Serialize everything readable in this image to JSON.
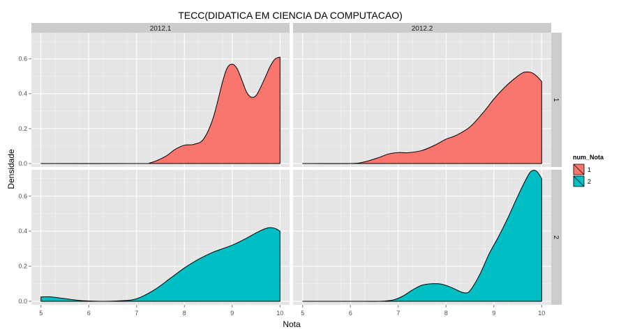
{
  "chart_data": {
    "type": "area",
    "title": "TECC(DIDATICA EM CIENCIA DA COMPUTACAO)",
    "xlabel": "Nota",
    "ylabel": "Densidade",
    "xlim": [
      4.8,
      10.2
    ],
    "ylim": [
      -0.02,
      0.75
    ],
    "x_ticks": [
      5,
      6,
      7,
      8,
      9,
      10
    ],
    "y_ticks": [
      0.0,
      0.2,
      0.4,
      0.6
    ],
    "y_tick_labels": [
      "0.0",
      "0.2",
      "0.4",
      "0.6"
    ],
    "grid": true,
    "facet_columns": [
      "2012.1",
      "2012.2"
    ],
    "facet_rows": [
      "1",
      "2"
    ],
    "legend": {
      "title": "num_Nota",
      "position": "right",
      "entries": [
        {
          "label": "1",
          "color": "#F8766D"
        },
        {
          "label": "2",
          "color": "#00BFC4"
        }
      ]
    },
    "panels": [
      {
        "column": "2012.1",
        "row": "1",
        "color": "#F8766D",
        "x": [
          5.0,
          7.0,
          7.3,
          7.6,
          7.8,
          8.0,
          8.2,
          8.4,
          8.6,
          8.8,
          8.9,
          9.0,
          9.1,
          9.2,
          9.3,
          9.4,
          9.5,
          9.6,
          9.7,
          9.8,
          9.9,
          10.0
        ],
        "y": [
          0.0,
          0.0,
          0.005,
          0.04,
          0.08,
          0.105,
          0.11,
          0.14,
          0.26,
          0.47,
          0.55,
          0.57,
          0.545,
          0.48,
          0.41,
          0.38,
          0.39,
          0.44,
          0.5,
          0.56,
          0.6,
          0.61
        ]
      },
      {
        "column": "2012.2",
        "row": "1",
        "color": "#F8766D",
        "x": [
          5.0,
          6.0,
          6.3,
          6.6,
          6.8,
          7.0,
          7.2,
          7.5,
          7.8,
          8.0,
          8.2,
          8.5,
          8.8,
          9.0,
          9.2,
          9.4,
          9.6,
          9.7,
          9.8,
          9.9,
          10.0
        ],
        "y": [
          0.0,
          0.0,
          0.01,
          0.035,
          0.055,
          0.063,
          0.062,
          0.075,
          0.11,
          0.14,
          0.16,
          0.21,
          0.3,
          0.37,
          0.43,
          0.48,
          0.52,
          0.525,
          0.52,
          0.5,
          0.47
        ]
      },
      {
        "column": "2012.1",
        "row": "2",
        "color": "#00BFC4",
        "x": [
          5.0,
          5.2,
          5.5,
          5.8,
          6.0,
          6.3,
          6.6,
          6.9,
          7.1,
          7.4,
          7.7,
          8.0,
          8.3,
          8.6,
          9.0,
          9.3,
          9.5,
          9.7,
          9.8,
          9.9,
          10.0
        ],
        "y": [
          0.025,
          0.025,
          0.015,
          0.005,
          0.002,
          0.0,
          0.002,
          0.008,
          0.025,
          0.07,
          0.13,
          0.19,
          0.24,
          0.28,
          0.32,
          0.36,
          0.39,
          0.415,
          0.42,
          0.415,
          0.4
        ]
      },
      {
        "column": "2012.2",
        "row": "2",
        "color": "#00BFC4",
        "x": [
          5.0,
          6.0,
          6.6,
          6.9,
          7.1,
          7.3,
          7.5,
          7.7,
          7.9,
          8.1,
          8.3,
          8.4,
          8.5,
          8.7,
          8.9,
          9.1,
          9.3,
          9.5,
          9.7,
          9.8,
          9.9,
          10.0
        ],
        "y": [
          0.0,
          0.0,
          0.0,
          0.008,
          0.03,
          0.065,
          0.092,
          0.1,
          0.098,
          0.08,
          0.055,
          0.048,
          0.06,
          0.15,
          0.27,
          0.37,
          0.48,
          0.6,
          0.71,
          0.745,
          0.74,
          0.7
        ]
      }
    ]
  }
}
